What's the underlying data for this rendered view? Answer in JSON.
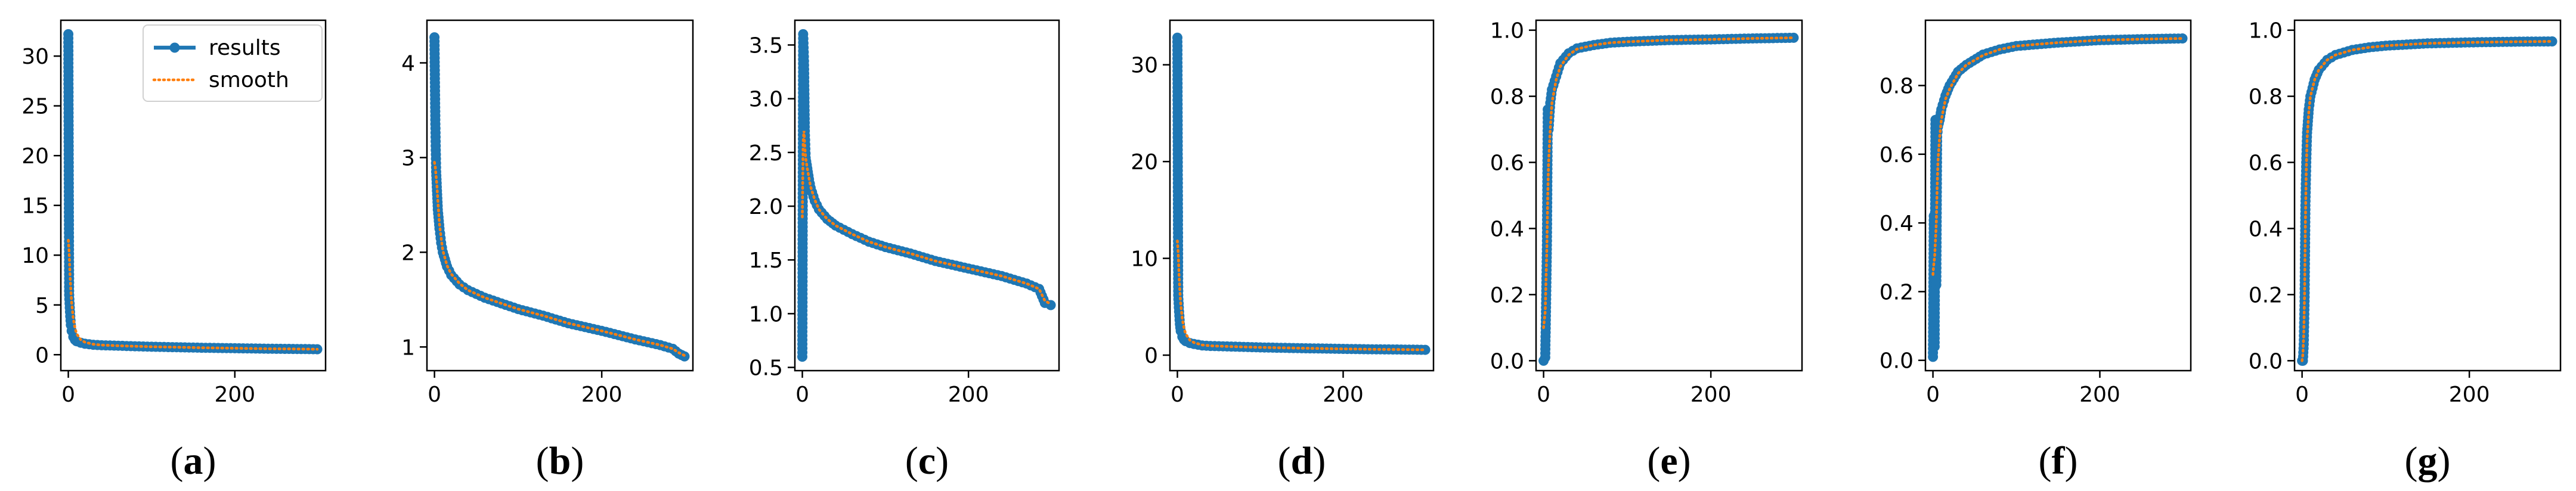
{
  "figure": {
    "panel_labels": [
      "(a)",
      "(b)",
      "(c)",
      "(d)",
      "(e)",
      "(f)",
      "(g)"
    ],
    "legend": {
      "series_1": "results",
      "series_2": "smooth"
    },
    "colors": {
      "results": "#1f77b4",
      "smooth": "#ff7f0e",
      "axes": "#000000",
      "background": "#ffffff"
    }
  },
  "chart_data": [
    {
      "panel": "(a)",
      "type": "line",
      "legend": "top-right",
      "xlim": [
        -9,
        309
      ],
      "ylim": [
        -1.6,
        33.6
      ],
      "xticks": [
        0,
        200
      ],
      "xtick_labels": [
        "0",
        "200"
      ],
      "yticks": [
        0,
        5,
        10,
        15,
        20,
        25,
        30
      ],
      "ytick_labels": [
        "0",
        "5",
        "10",
        "15",
        "20",
        "25",
        "30"
      ],
      "series": [
        {
          "name": "results",
          "style": "solid-markers",
          "x": [
            0,
            1,
            2,
            3,
            4,
            6,
            8,
            10,
            15,
            20,
            30,
            40,
            60,
            80,
            100,
            130,
            160,
            200,
            240,
            270,
            299
          ],
          "y": [
            32.2,
            6.0,
            4.3,
            3.0,
            2.4,
            1.8,
            1.5,
            1.35,
            1.2,
            1.1,
            1.0,
            0.95,
            0.9,
            0.85,
            0.8,
            0.75,
            0.7,
            0.65,
            0.6,
            0.58,
            0.55
          ]
        },
        {
          "name": "smooth",
          "style": "dotted",
          "x": [
            0,
            1,
            2,
            3,
            4,
            6,
            8,
            10,
            15,
            20,
            30,
            40,
            60,
            80,
            100,
            130,
            160,
            200,
            240,
            270,
            299
          ],
          "y": [
            11.5,
            10.3,
            8.1,
            6.5,
            5.2,
            3.6,
            2.7,
            2.1,
            1.5,
            1.25,
            1.05,
            0.97,
            0.9,
            0.85,
            0.8,
            0.75,
            0.7,
            0.65,
            0.6,
            0.58,
            0.55
          ]
        }
      ]
    },
    {
      "panel": "(b)",
      "type": "line",
      "xlim": [
        -9,
        309
      ],
      "ylim": [
        0.75,
        4.45
      ],
      "xticks": [
        0,
        200
      ],
      "xtick_labels": [
        "0",
        "200"
      ],
      "yticks": [
        1,
        2,
        3,
        4
      ],
      "ytick_labels": [
        "1",
        "2",
        "3",
        "4"
      ],
      "series": [
        {
          "name": "results",
          "style": "solid-markers",
          "x": [
            0,
            1,
            2,
            3,
            4,
            6,
            8,
            10,
            15,
            20,
            30,
            40,
            60,
            80,
            100,
            130,
            160,
            200,
            240,
            270,
            285,
            292,
            299
          ],
          "y": [
            4.27,
            3.4,
            2.85,
            2.65,
            2.45,
            2.25,
            2.1,
            2.0,
            1.85,
            1.76,
            1.66,
            1.6,
            1.52,
            1.46,
            1.4,
            1.33,
            1.25,
            1.17,
            1.08,
            1.02,
            0.98,
            0.93,
            0.9
          ]
        },
        {
          "name": "smooth",
          "style": "dotted",
          "x": [
            0,
            1,
            2,
            3,
            4,
            6,
            8,
            10,
            15,
            20,
            30,
            40,
            60,
            80,
            100,
            130,
            160,
            200,
            240,
            270,
            285,
            292,
            299
          ],
          "y": [
            2.95,
            2.9,
            2.8,
            2.7,
            2.55,
            2.3,
            2.15,
            2.02,
            1.86,
            1.77,
            1.67,
            1.6,
            1.52,
            1.46,
            1.4,
            1.33,
            1.25,
            1.17,
            1.08,
            1.02,
            0.98,
            0.94,
            0.91
          ]
        }
      ]
    },
    {
      "panel": "(c)",
      "type": "line",
      "xlim": [
        -9,
        309
      ],
      "ylim": [
        0.47,
        3.73
      ],
      "xticks": [
        0,
        200
      ],
      "xtick_labels": [
        "0",
        "200"
      ],
      "yticks": [
        0.5,
        1.0,
        1.5,
        2.0,
        2.5,
        3.0,
        3.5
      ],
      "ytick_labels": [
        "0.5",
        "1.0",
        "1.5",
        "2.0",
        "2.5",
        "3.0",
        "3.5"
      ],
      "series": [
        {
          "name": "results",
          "style": "solid-markers",
          "x": [
            0,
            1,
            2,
            3,
            4,
            6,
            8,
            10,
            15,
            20,
            30,
            40,
            60,
            80,
            100,
            130,
            160,
            200,
            240,
            270,
            285,
            292,
            299
          ],
          "y": [
            0.6,
            3.6,
            3.35,
            2.7,
            2.45,
            2.35,
            2.25,
            2.17,
            2.05,
            1.97,
            1.88,
            1.82,
            1.74,
            1.67,
            1.62,
            1.56,
            1.49,
            1.42,
            1.35,
            1.28,
            1.23,
            1.1,
            1.08
          ]
        },
        {
          "name": "smooth",
          "style": "dotted",
          "x": [
            0,
            1,
            2,
            3,
            4,
            6,
            8,
            10,
            15,
            20,
            30,
            40,
            60,
            80,
            100,
            130,
            160,
            200,
            240,
            270,
            285,
            292,
            299
          ],
          "y": [
            1.9,
            2.6,
            2.7,
            2.55,
            2.45,
            2.35,
            2.26,
            2.18,
            2.06,
            1.97,
            1.88,
            1.82,
            1.74,
            1.67,
            1.62,
            1.56,
            1.49,
            1.42,
            1.35,
            1.28,
            1.23,
            1.12,
            1.09
          ]
        }
      ]
    },
    {
      "panel": "(d)",
      "type": "line",
      "xlim": [
        -9,
        309
      ],
      "ylim": [
        -1.6,
        34.6
      ],
      "xticks": [
        0,
        200
      ],
      "xtick_labels": [
        "0",
        "200"
      ],
      "yticks": [
        0,
        10,
        20,
        30
      ],
      "ytick_labels": [
        "0",
        "10",
        "20",
        "30"
      ],
      "series": [
        {
          "name": "results",
          "style": "solid-markers",
          "x": [
            0,
            1,
            2,
            3,
            4,
            6,
            8,
            10,
            15,
            20,
            30,
            40,
            60,
            80,
            100,
            130,
            160,
            200,
            240,
            270,
            299
          ],
          "y": [
            32.8,
            6.2,
            4.5,
            3.2,
            2.5,
            1.9,
            1.6,
            1.45,
            1.25,
            1.15,
            1.0,
            0.95,
            0.9,
            0.85,
            0.8,
            0.75,
            0.7,
            0.65,
            0.6,
            0.58,
            0.55
          ]
        },
        {
          "name": "smooth",
          "style": "dotted",
          "x": [
            0,
            1,
            2,
            3,
            4,
            6,
            8,
            10,
            15,
            20,
            30,
            40,
            60,
            80,
            100,
            130,
            160,
            200,
            240,
            270,
            299
          ],
          "y": [
            11.8,
            10.5,
            8.3,
            6.6,
            5.3,
            3.7,
            2.8,
            2.2,
            1.55,
            1.3,
            1.05,
            0.97,
            0.9,
            0.85,
            0.8,
            0.75,
            0.7,
            0.65,
            0.6,
            0.58,
            0.55
          ]
        }
      ]
    },
    {
      "panel": "(e)",
      "type": "line",
      "xlim": [
        -9,
        309
      ],
      "ylim": [
        -0.03,
        1.03
      ],
      "xticks": [
        0,
        200
      ],
      "xtick_labels": [
        "0",
        "200"
      ],
      "yticks": [
        0.0,
        0.2,
        0.4,
        0.6,
        0.8,
        1.0
      ],
      "ytick_labels": [
        "0.0",
        "0.2",
        "0.4",
        "0.6",
        "0.8",
        "1.0"
      ],
      "series": [
        {
          "name": "results",
          "style": "solid-markers",
          "x": [
            0,
            2,
            4,
            5,
            6,
            8,
            10,
            15,
            20,
            30,
            40,
            60,
            80,
            100,
            150,
            200,
            250,
            299
          ],
          "y": [
            0.0,
            0.01,
            0.35,
            0.76,
            0.7,
            0.78,
            0.82,
            0.86,
            0.9,
            0.93,
            0.945,
            0.955,
            0.962,
            0.965,
            0.97,
            0.972,
            0.975,
            0.977
          ]
        },
        {
          "name": "smooth",
          "style": "dotted",
          "x": [
            0,
            2,
            4,
            5,
            6,
            8,
            10,
            15,
            20,
            30,
            40,
            60,
            80,
            100,
            150,
            200,
            250,
            299
          ],
          "y": [
            0.1,
            0.15,
            0.35,
            0.5,
            0.6,
            0.7,
            0.78,
            0.85,
            0.89,
            0.925,
            0.943,
            0.955,
            0.962,
            0.965,
            0.97,
            0.972,
            0.975,
            0.977
          ]
        }
      ]
    },
    {
      "panel": "(f)",
      "type": "line",
      "xlim": [
        -9,
        309
      ],
      "ylim": [
        -0.03,
        0.99
      ],
      "xticks": [
        0,
        200
      ],
      "xtick_labels": [
        "0",
        "200"
      ],
      "yticks": [
        0.0,
        0.2,
        0.4,
        0.6,
        0.8
      ],
      "ytick_labels": [
        "0.0",
        "0.2",
        "0.4",
        "0.6",
        "0.8"
      ],
      "series": [
        {
          "name": "results",
          "style": "solid-markers",
          "x": [
            0,
            1,
            2,
            3,
            4,
            5,
            6,
            8,
            10,
            15,
            20,
            30,
            40,
            60,
            80,
            100,
            150,
            200,
            250,
            299
          ],
          "y": [
            0.01,
            0.42,
            0.04,
            0.7,
            0.22,
            0.65,
            0.68,
            0.7,
            0.73,
            0.77,
            0.8,
            0.84,
            0.86,
            0.89,
            0.905,
            0.915,
            0.925,
            0.932,
            0.935,
            0.937
          ]
        },
        {
          "name": "smooth",
          "style": "dotted",
          "x": [
            0,
            1,
            2,
            3,
            4,
            5,
            6,
            8,
            10,
            15,
            20,
            30,
            40,
            60,
            80,
            100,
            150,
            200,
            250,
            299
          ],
          "y": [
            0.25,
            0.28,
            0.3,
            0.35,
            0.4,
            0.5,
            0.58,
            0.65,
            0.7,
            0.76,
            0.79,
            0.835,
            0.86,
            0.888,
            0.905,
            0.915,
            0.925,
            0.932,
            0.935,
            0.937
          ]
        }
      ]
    },
    {
      "panel": "(g)",
      "type": "line",
      "xlim": [
        -9,
        309
      ],
      "ylim": [
        -0.03,
        1.03
      ],
      "xticks": [
        0,
        200
      ],
      "xtick_labels": [
        "0",
        "200"
      ],
      "yticks": [
        0.0,
        0.2,
        0.4,
        0.6,
        0.8,
        1.0
      ],
      "ytick_labels": [
        "0.0",
        "0.2",
        "0.4",
        "0.6",
        "0.8",
        "1.0"
      ],
      "series": [
        {
          "name": "results",
          "style": "solid-markers",
          "x": [
            0,
            1,
            2,
            3,
            4,
            5,
            6,
            8,
            10,
            15,
            20,
            30,
            40,
            60,
            80,
            100,
            150,
            200,
            250,
            299
          ],
          "y": [
            0.0,
            0.0,
            0.05,
            0.18,
            0.47,
            0.6,
            0.69,
            0.76,
            0.8,
            0.85,
            0.88,
            0.91,
            0.925,
            0.94,
            0.948,
            0.953,
            0.96,
            0.963,
            0.965,
            0.966
          ]
        },
        {
          "name": "smooth",
          "style": "dotted",
          "x": [
            0,
            1,
            2,
            3,
            4,
            5,
            6,
            8,
            10,
            15,
            20,
            30,
            40,
            60,
            80,
            100,
            150,
            200,
            250,
            299
          ],
          "y": [
            0.0,
            0.02,
            0.08,
            0.2,
            0.42,
            0.57,
            0.67,
            0.75,
            0.8,
            0.85,
            0.88,
            0.91,
            0.925,
            0.94,
            0.948,
            0.953,
            0.96,
            0.963,
            0.965,
            0.966
          ]
        }
      ]
    }
  ]
}
